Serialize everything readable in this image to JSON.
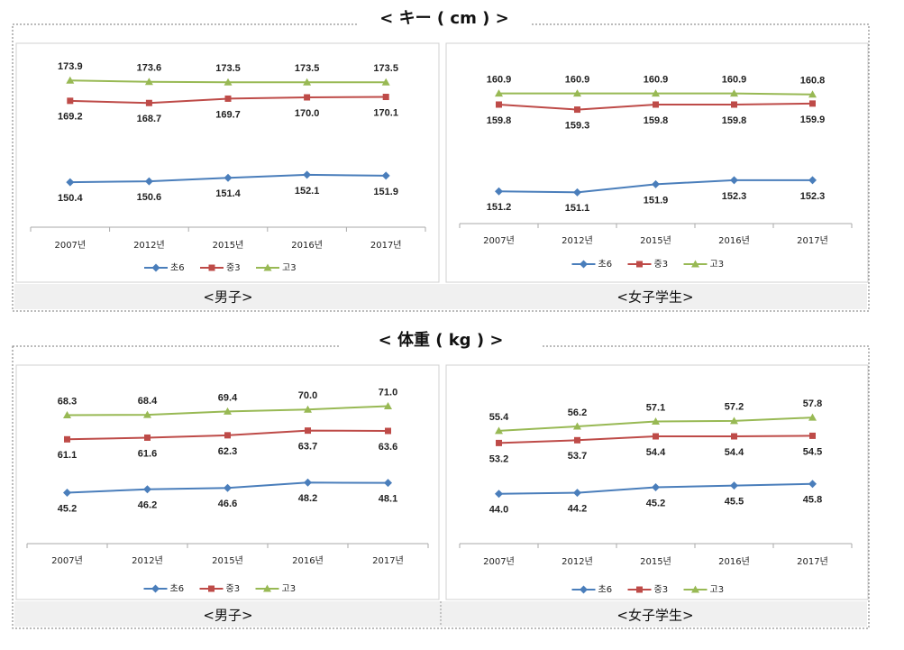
{
  "sections": [
    {
      "title": "< キー ( cm ) >",
      "captions": [
        "<男子>",
        "<女子学生>"
      ]
    },
    {
      "title": "< 体重 ( kg ) >",
      "captions": [
        "<男子>",
        "<女子学生>"
      ]
    }
  ],
  "chart_data": [
    {
      "type": "line",
      "categories": [
        "2007년",
        "2012년",
        "2015년",
        "2016년",
        "2017년"
      ],
      "ylim": [
        140,
        180
      ],
      "legend": "bottom",
      "series": [
        {
          "name": "초6",
          "color": "#4a7ebb",
          "marker": "diamond",
          "values": [
            150.4,
            150.6,
            151.4,
            152.1,
            151.9
          ]
        },
        {
          "name": "중3",
          "color": "#be4b48",
          "marker": "square",
          "values": [
            169.2,
            168.7,
            169.7,
            170.0,
            170.1
          ],
          "value_labels": [
            "169.2",
            "168.7",
            "169.7",
            "170.0",
            "170.1"
          ]
        },
        {
          "name": "고3",
          "color": "#98b954",
          "marker": "triangle",
          "values": [
            173.9,
            173.6,
            173.5,
            173.5,
            173.5
          ]
        }
      ]
    },
    {
      "type": "line",
      "categories": [
        "2007년",
        "2012년",
        "2015년",
        "2016년",
        "2017년"
      ],
      "ylim": [
        148,
        164
      ],
      "legend": "bottom",
      "series": [
        {
          "name": "초6",
          "color": "#4a7ebb",
          "marker": "diamond",
          "values": [
            151.2,
            151.1,
            151.9,
            152.3,
            152.3
          ]
        },
        {
          "name": "중3",
          "color": "#be4b48",
          "marker": "square",
          "values": [
            159.8,
            159.3,
            159.8,
            159.8,
            159.9
          ]
        },
        {
          "name": "고3",
          "color": "#98b954",
          "marker": "triangle",
          "values": [
            160.9,
            160.9,
            160.9,
            160.9,
            160.8
          ]
        }
      ]
    },
    {
      "type": "line",
      "categories": [
        "2007년",
        "2012년",
        "2015년",
        "2016년",
        "2017년"
      ],
      "ylim": [
        30,
        80
      ],
      "legend": "bottom",
      "series": [
        {
          "name": "초6",
          "color": "#4a7ebb",
          "marker": "diamond",
          "values": [
            45.2,
            46.2,
            46.6,
            48.2,
            48.1
          ]
        },
        {
          "name": "중3",
          "color": "#be4b48",
          "marker": "square",
          "values": [
            61.1,
            61.6,
            62.3,
            63.7,
            63.6
          ]
        },
        {
          "name": "고3",
          "color": "#98b954",
          "marker": "triangle",
          "values": [
            68.3,
            68.4,
            69.4,
            70.0,
            71.0
          ],
          "value_labels": [
            "68.3",
            "68.4",
            "69.4",
            "70.0",
            "71.0"
          ]
        }
      ]
    },
    {
      "type": "line",
      "categories": [
        "2007년",
        "2012년",
        "2015년",
        "2016년",
        "2017년"
      ],
      "ylim": [
        35,
        65
      ],
      "legend": "bottom",
      "series": [
        {
          "name": "초6",
          "color": "#4a7ebb",
          "marker": "diamond",
          "values": [
            44.0,
            44.2,
            45.2,
            45.5,
            45.8
          ],
          "value_labels": [
            "44.0",
            "44.2",
            "45.2",
            "45.5",
            "45.8"
          ]
        },
        {
          "name": "중3",
          "color": "#be4b48",
          "marker": "square",
          "values": [
            53.2,
            53.7,
            54.4,
            54.4,
            54.5
          ]
        },
        {
          "name": "고3",
          "color": "#98b954",
          "marker": "triangle",
          "values": [
            55.4,
            56.2,
            57.1,
            57.2,
            57.8
          ]
        }
      ]
    }
  ]
}
